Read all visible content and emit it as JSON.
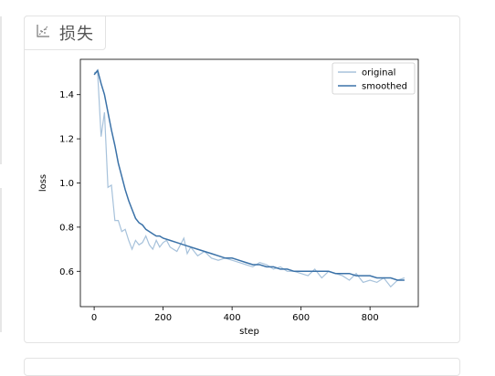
{
  "panel": {
    "title": "损失",
    "icon": "chart-scatter-icon"
  },
  "colors": {
    "original": "#a7c2db",
    "smoothed": "#3b72a8",
    "panel_border": "#e3e3e3"
  },
  "chart_data": {
    "type": "line",
    "xlabel": "step",
    "ylabel": "loss",
    "xlim": [
      -40,
      940
    ],
    "ylim": [
      0.44,
      1.56
    ],
    "xticks": [
      0,
      200,
      400,
      600,
      800
    ],
    "yticks": [
      0.6,
      0.8,
      1.0,
      1.2,
      1.4
    ],
    "ytick_labels": [
      "0.6",
      "0.8",
      "1.0",
      "1.2",
      "1.4"
    ],
    "legend_position": "top-right",
    "grid": false,
    "series": [
      {
        "name": "original",
        "x": [
          0,
          10,
          20,
          30,
          40,
          50,
          60,
          70,
          80,
          90,
          100,
          110,
          120,
          130,
          140,
          150,
          160,
          170,
          180,
          190,
          200,
          210,
          220,
          230,
          240,
          250,
          260,
          270,
          280,
          290,
          300,
          320,
          340,
          360,
          380,
          400,
          420,
          440,
          460,
          480,
          500,
          520,
          540,
          560,
          580,
          600,
          620,
          640,
          660,
          680,
          700,
          720,
          740,
          760,
          780,
          800,
          820,
          840,
          860,
          880,
          900
        ],
        "y": [
          1.5,
          1.5,
          1.21,
          1.32,
          0.98,
          0.99,
          0.83,
          0.83,
          0.78,
          0.79,
          0.74,
          0.7,
          0.74,
          0.72,
          0.73,
          0.76,
          0.72,
          0.7,
          0.74,
          0.71,
          0.73,
          0.74,
          0.71,
          0.7,
          0.69,
          0.72,
          0.75,
          0.68,
          0.71,
          0.69,
          0.67,
          0.69,
          0.66,
          0.65,
          0.66,
          0.65,
          0.64,
          0.63,
          0.62,
          0.64,
          0.63,
          0.61,
          0.62,
          0.6,
          0.6,
          0.59,
          0.58,
          0.61,
          0.57,
          0.6,
          0.59,
          0.58,
          0.56,
          0.59,
          0.55,
          0.56,
          0.55,
          0.57,
          0.53,
          0.56,
          0.57
        ]
      },
      {
        "name": "smoothed",
        "x": [
          0,
          10,
          20,
          30,
          40,
          50,
          60,
          70,
          80,
          90,
          100,
          110,
          120,
          130,
          140,
          150,
          160,
          170,
          180,
          190,
          200,
          220,
          240,
          260,
          280,
          300,
          320,
          340,
          360,
          380,
          400,
          420,
          440,
          460,
          480,
          500,
          520,
          540,
          560,
          580,
          600,
          620,
          640,
          660,
          680,
          700,
          720,
          740,
          760,
          780,
          800,
          820,
          840,
          860,
          880,
          900
        ],
        "y": [
          1.49,
          1.51,
          1.45,
          1.4,
          1.32,
          1.24,
          1.17,
          1.09,
          1.03,
          0.97,
          0.92,
          0.88,
          0.84,
          0.82,
          0.81,
          0.79,
          0.78,
          0.77,
          0.76,
          0.76,
          0.75,
          0.74,
          0.73,
          0.72,
          0.71,
          0.7,
          0.69,
          0.68,
          0.67,
          0.66,
          0.66,
          0.65,
          0.64,
          0.63,
          0.63,
          0.62,
          0.62,
          0.61,
          0.61,
          0.6,
          0.6,
          0.6,
          0.6,
          0.6,
          0.6,
          0.59,
          0.59,
          0.59,
          0.58,
          0.58,
          0.58,
          0.57,
          0.57,
          0.57,
          0.56,
          0.56
        ]
      }
    ]
  }
}
